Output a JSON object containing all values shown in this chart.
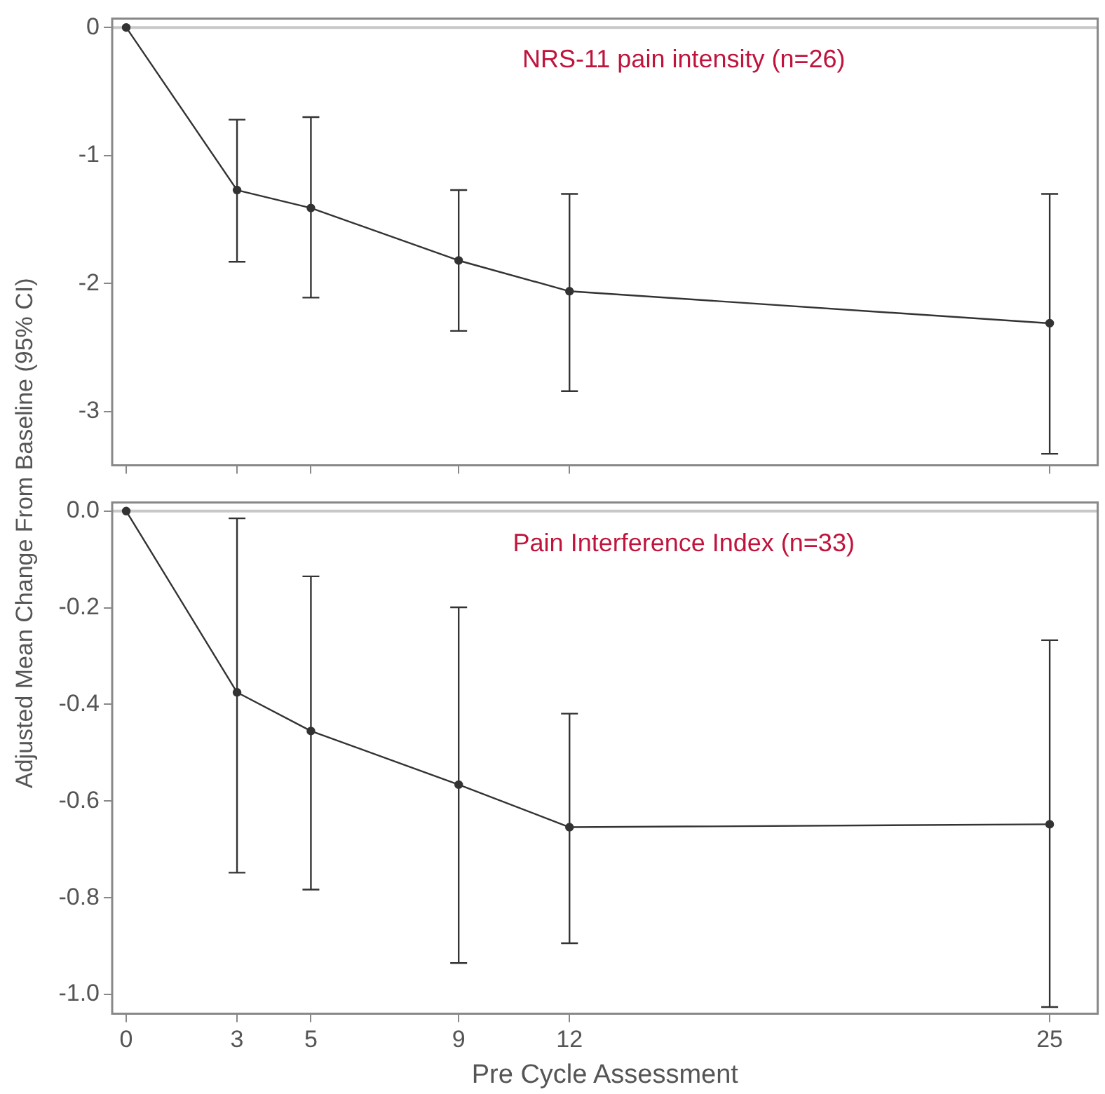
{
  "chart_data": [
    {
      "type": "line",
      "title": "NRS-11 pain intensity (n=26)",
      "ylabel": "Adjusted Mean Change From Baseline (95% CI)",
      "x": [
        0,
        3,
        5,
        9,
        12,
        25
      ],
      "series": [
        {
          "color": "#333333",
          "values": [
            0,
            -1.27,
            -1.41,
            -1.82,
            -2.06,
            -2.31
          ],
          "errors": [
            null,
            [
              -1.83,
              -0.72
            ],
            [
              -2.11,
              -0.7
            ],
            [
              -2.37,
              -1.27
            ],
            [
              -2.84,
              -1.3
            ],
            [
              -3.33,
              -1.3
            ]
          ]
        }
      ],
      "xlim": [
        -0.38,
        26.3
      ],
      "xticks": [
        0,
        3,
        5,
        9,
        12,
        25
      ],
      "ylim": [
        -3.42,
        0.07
      ],
      "yticks": [
        0,
        -1,
        -2,
        -3
      ],
      "tick_labels": "y",
      "grid": false,
      "legend": false,
      "marker": "circle",
      "line_style": "solid",
      "ref_lines": [
        {
          "axis": "y",
          "value": 0,
          "color": "#c8c8c8"
        }
      ]
    },
    {
      "type": "line",
      "title": "Pain Interference Index (n=33)",
      "xlabel": "Pre Cycle Assessment",
      "x": [
        0,
        3,
        5,
        9,
        12,
        25
      ],
      "series": [
        {
          "color": "#333333",
          "values": [
            0,
            -0.375,
            -0.455,
            -0.566,
            -0.654,
            -0.648
          ],
          "errors": [
            null,
            [
              -0.748,
              -0.015
            ],
            [
              -0.783,
              -0.135
            ],
            [
              -0.935,
              -0.199
            ],
            [
              -0.894,
              -0.419
            ],
            [
              -1.026,
              -0.267
            ]
          ]
        }
      ],
      "xlim": [
        -0.38,
        26.3
      ],
      "xticks": [
        0,
        3,
        5,
        9,
        12,
        25
      ],
      "ylim": [
        -1.04,
        0.018
      ],
      "yticks": [
        {
          "value": 0,
          "label": "0.0"
        },
        -0.2,
        -0.4,
        -0.6,
        -0.8,
        {
          "value": -1,
          "label": "-1.0"
        }
      ],
      "grid": false,
      "legend": false,
      "marker": "circle",
      "line_style": "solid",
      "ref_lines": [
        {
          "axis": "y",
          "value": 0,
          "color": "#c8c8c8"
        }
      ]
    }
  ]
}
